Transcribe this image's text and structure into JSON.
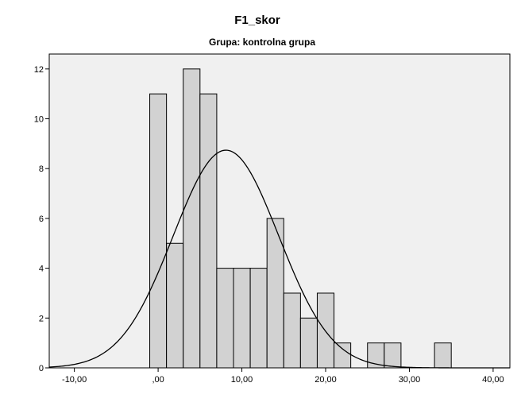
{
  "chart_data": {
    "type": "bar",
    "title": "F1_skor",
    "subtitle": "Grupa: kontrolna grupa",
    "xlabel": "",
    "ylabel": "",
    "xlim": [
      -13,
      42
    ],
    "ylim": [
      0,
      12.6
    ],
    "bin_width": 2,
    "x_ticks": [
      -10,
      0,
      10,
      20,
      30,
      40
    ],
    "x_tick_labels": [
      "-10,00",
      ",00",
      "10,00",
      "20,00",
      "30,00",
      "40,00"
    ],
    "y_ticks": [
      0,
      2,
      4,
      6,
      8,
      10,
      12
    ],
    "y_tick_labels": [
      "0",
      "2",
      "4",
      "6",
      "8",
      "10",
      "12"
    ],
    "bins": [
      {
        "start": -1,
        "end": 1,
        "count": 11
      },
      {
        "start": 1,
        "end": 3,
        "count": 5
      },
      {
        "start": 3,
        "end": 5,
        "count": 12
      },
      {
        "start": 5,
        "end": 7,
        "count": 11
      },
      {
        "start": 7,
        "end": 9,
        "count": 4
      },
      {
        "start": 9,
        "end": 11,
        "count": 4
      },
      {
        "start": 11,
        "end": 13,
        "count": 4
      },
      {
        "start": 13,
        "end": 15,
        "count": 6
      },
      {
        "start": 15,
        "end": 17,
        "count": 3
      },
      {
        "start": 17,
        "end": 19,
        "count": 2
      },
      {
        "start": 19,
        "end": 21,
        "count": 3
      },
      {
        "start": 21,
        "end": 23,
        "count": 1
      },
      {
        "start": 25,
        "end": 27,
        "count": 1
      },
      {
        "start": 27,
        "end": 29,
        "count": 1
      },
      {
        "start": 33,
        "end": 35,
        "count": 1
      }
    ],
    "normal_curve": {
      "mean": 8.1,
      "sd": 6.3,
      "n": 69
    },
    "colors": {
      "plot_background": "#f0f0f0",
      "bar_fill": "#d2d2d2",
      "bar_stroke": "#000000",
      "curve": "#000000"
    },
    "grid": false
  }
}
